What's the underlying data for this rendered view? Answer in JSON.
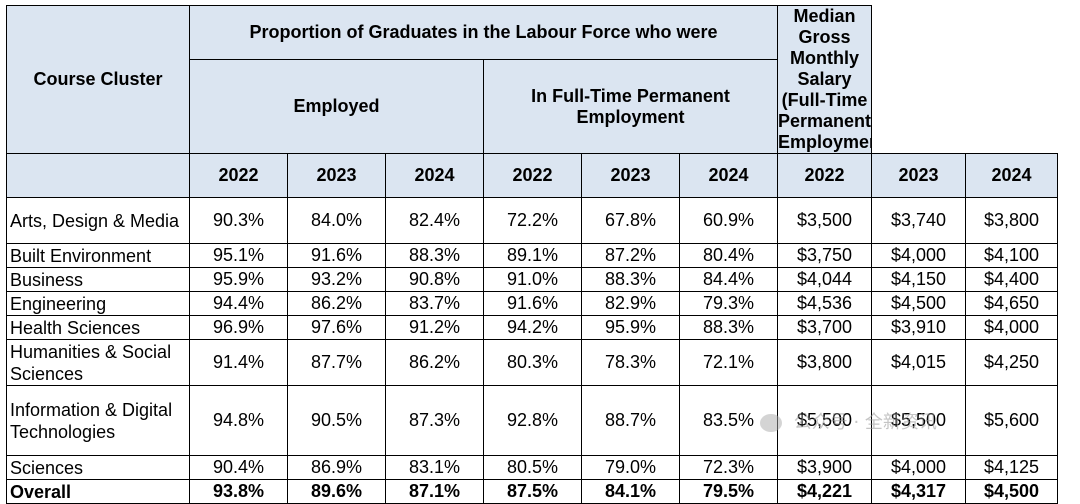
{
  "header": {
    "course_cluster": "Course Cluster",
    "proportion": "Proportion of Graduates in the Labour Force who were",
    "employed": "Employed",
    "ftpe": "In Full-Time Permanent Employment",
    "salary": "Median Gross Monthly Salary (Full-Time Permanent Employment)",
    "years": [
      "2022",
      "2023",
      "2024"
    ]
  },
  "rows": [
    {
      "name": "Arts, Design & Media",
      "values": [
        "90.3%",
        "84.0%",
        "82.4%",
        "72.2%",
        "67.8%",
        "60.9%",
        "$3,500",
        "$3,740",
        "$3,800"
      ]
    },
    {
      "name": "Built Environment",
      "values": [
        "95.1%",
        "91.6%",
        "88.3%",
        "89.1%",
        "87.2%",
        "80.4%",
        "$3,750",
        "$4,000",
        "$4,100"
      ]
    },
    {
      "name": "Business",
      "values": [
        "95.9%",
        "93.2%",
        "90.8%",
        "91.0%",
        "88.3%",
        "84.4%",
        "$4,044",
        "$4,150",
        "$4,400"
      ]
    },
    {
      "name": "Engineering",
      "values": [
        "94.4%",
        "86.2%",
        "83.7%",
        "91.6%",
        "82.9%",
        "79.3%",
        "$4,536",
        "$4,500",
        "$4,650"
      ]
    },
    {
      "name": "Health Sciences",
      "values": [
        "96.9%",
        "97.6%",
        "91.2%",
        "94.2%",
        "95.9%",
        "88.3%",
        "$3,700",
        "$3,910",
        "$4,000"
      ]
    },
    {
      "name": "Humanities & Social Sciences",
      "values": [
        "91.4%",
        "87.7%",
        "86.2%",
        "80.3%",
        "78.3%",
        "72.1%",
        "$3,800",
        "$4,015",
        "$4,250"
      ]
    },
    {
      "name": "Information & Digital Technologies",
      "values": [
        "94.8%",
        "90.5%",
        "87.3%",
        "92.8%",
        "88.7%",
        "83.5%",
        "$5,500",
        "$5,500",
        "$5,600"
      ]
    },
    {
      "name": "Sciences",
      "values": [
        "90.4%",
        "86.9%",
        "83.1%",
        "80.5%",
        "79.0%",
        "72.3%",
        "$3,900",
        "$4,000",
        "$4,125"
      ]
    },
    {
      "name": "Overall",
      "values": [
        "93.8%",
        "89.6%",
        "87.1%",
        "87.5%",
        "84.1%",
        "79.5%",
        "$4,221",
        "$4,317",
        "$4,500"
      ]
    }
  ],
  "watermark": "公众号 · 全新资讯"
}
